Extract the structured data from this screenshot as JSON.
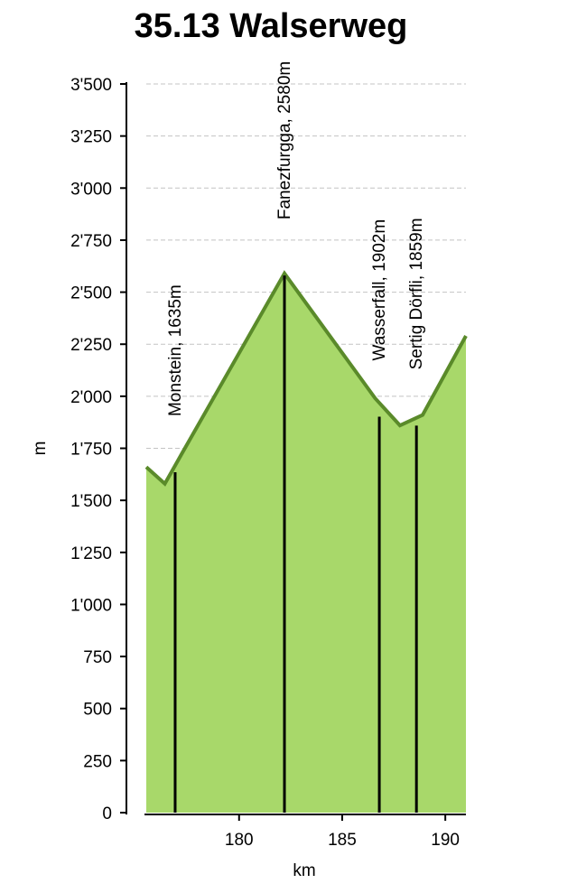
{
  "chart_data": {
    "type": "area",
    "title": "35.13 Walserweg",
    "xlabel": "km",
    "ylabel": "m",
    "xlim": [
      175.5,
      191.0
    ],
    "ylim": [
      0,
      3500
    ],
    "xticks": [
      180,
      185,
      190
    ],
    "yticks": [
      0,
      250,
      500,
      750,
      1000,
      1250,
      1500,
      1750,
      2000,
      2250,
      2500,
      2750,
      3000,
      3250,
      3500
    ],
    "ytick_labels": [
      "0",
      "250",
      "500",
      "750",
      "1'000",
      "1'250",
      "1'500",
      "1'750",
      "2'000",
      "2'250",
      "2'500",
      "2'750",
      "3'000",
      "3'250",
      "3'500"
    ],
    "grid": "horizontal dashed",
    "colors": {
      "fill": "#a8d86a",
      "line": "#5a8a2a",
      "marker": "#000000"
    },
    "profile": [
      {
        "x": 175.5,
        "y": 1660
      },
      {
        "x": 176.4,
        "y": 1580
      },
      {
        "x": 177.2,
        "y": 1720
      },
      {
        "x": 182.2,
        "y": 2590
      },
      {
        "x": 186.6,
        "y": 1990
      },
      {
        "x": 187.8,
        "y": 1860
      },
      {
        "x": 188.9,
        "y": 1910
      },
      {
        "x": 191.0,
        "y": 2290
      }
    ],
    "waypoints": [
      {
        "label": "Monstein, 1635m",
        "x": 176.9,
        "y": 1635
      },
      {
        "label": "Fanezfurgga, 2580m",
        "x": 182.2,
        "y": 2580
      },
      {
        "label": "Wasserfall, 1902m",
        "x": 186.8,
        "y": 1902
      },
      {
        "label": "Sertig Dörfli, 1859m",
        "x": 188.6,
        "y": 1859
      }
    ]
  }
}
